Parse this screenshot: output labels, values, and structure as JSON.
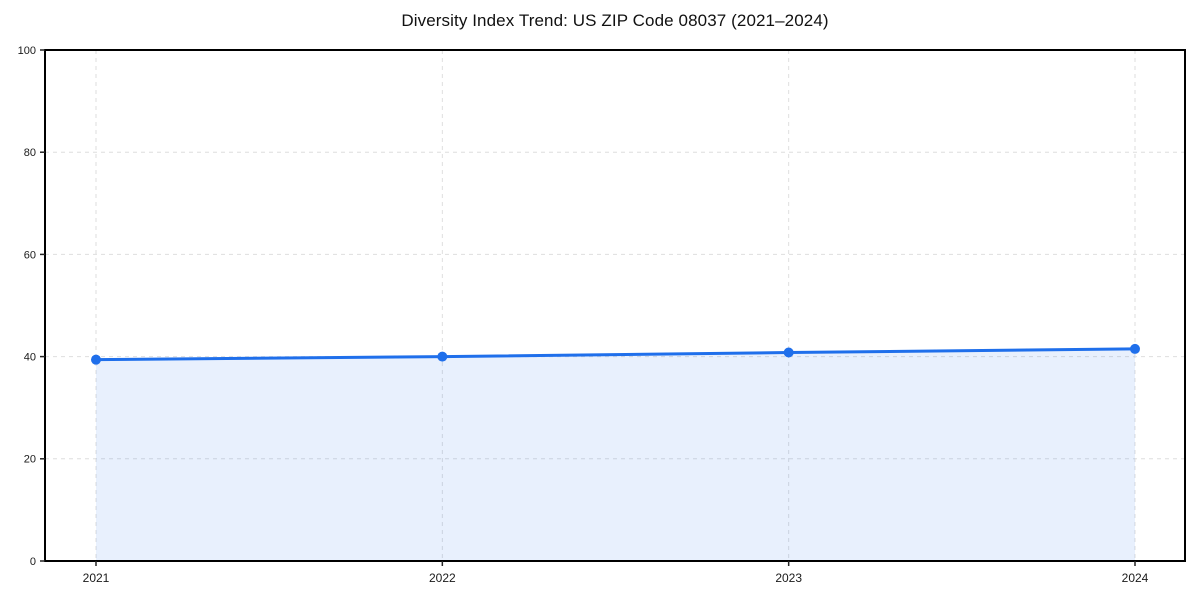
{
  "page": {
    "background": "#ffffff"
  },
  "chart_data": {
    "type": "area",
    "title": "Diversity Index Trend: US ZIP Code 08037 (2021–2024)",
    "categories": [
      "2021",
      "2022",
      "2023",
      "2024"
    ],
    "series": [
      {
        "name": "Diversity Index",
        "values": [
          39.4,
          40.0,
          40.8,
          41.5
        ]
      }
    ],
    "xlabel": "",
    "ylabel": "",
    "ylim": [
      0,
      100
    ],
    "yticks": [
      0,
      20,
      40,
      60,
      80,
      100
    ],
    "grid": true,
    "grid_style": "dashed",
    "legend_position": "none",
    "line_color": "#1f6feb",
    "marker_color": "#1f6feb",
    "fill_color": "#1f6feb",
    "fill_opacity": 0.1,
    "grid_color": "#dedede",
    "spine_color": "#000000",
    "tick_color": "#222222",
    "tick_label_color": "#1a1a1a",
    "title_color": "#111111"
  }
}
